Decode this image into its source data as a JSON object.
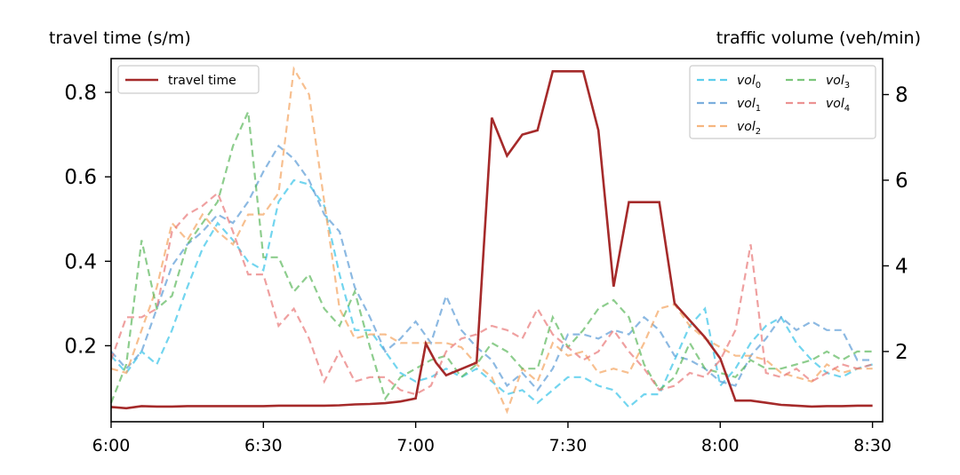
{
  "chart_data": {
    "type": "line",
    "ylabel_left": "travel time (s/m)",
    "ylabel_right": "traffic volume (veh/min)",
    "xlabel": "",
    "xlim": [
      0,
      152
    ],
    "ylim_left": [
      0.02,
      0.88
    ],
    "ylim_right": [
      0.36,
      8.84
    ],
    "xticks": [
      {
        "x": 0,
        "label": "6:00"
      },
      {
        "x": 30,
        "label": "6:30"
      },
      {
        "x": 60,
        "label": "7:00"
      },
      {
        "x": 90,
        "label": "7:30"
      },
      {
        "x": 120,
        "label": "8:00"
      },
      {
        "x": 150,
        "label": "8:30"
      }
    ],
    "yticks_left": [
      {
        "v": 0.2,
        "label": "0.2"
      },
      {
        "v": 0.4,
        "label": "0.4"
      },
      {
        "v": 0.6,
        "label": "0.6"
      },
      {
        "v": 0.8,
        "label": "0.8"
      }
    ],
    "yticks_right": [
      {
        "v": 2,
        "label": "2"
      },
      {
        "v": 4,
        "label": "4"
      },
      {
        "v": 6,
        "label": "6"
      },
      {
        "v": 8,
        "label": "8"
      }
    ],
    "x": [
      0,
      3,
      6,
      9,
      12,
      15,
      18,
      21,
      24,
      27,
      30,
      33,
      36,
      39,
      42,
      45,
      48,
      51,
      54,
      57,
      60,
      63,
      66,
      69,
      72,
      75,
      78,
      81,
      84,
      87,
      90,
      93,
      96,
      99,
      102,
      105,
      108,
      111,
      114,
      117,
      120,
      123,
      126,
      129,
      132,
      135,
      138,
      141,
      144,
      147,
      150
    ],
    "travel_time": {
      "name": "travel time",
      "axis": "left",
      "color": "#a52a2a",
      "x": [
        0,
        3,
        6,
        9,
        12,
        15,
        18,
        21,
        24,
        27,
        30,
        33,
        36,
        39,
        42,
        45,
        48,
        51,
        54,
        57,
        60,
        62,
        64,
        66,
        68,
        72,
        75,
        78,
        81,
        84,
        87,
        90,
        93,
        96,
        99,
        102,
        105,
        108,
        111,
        114,
        117,
        120,
        123,
        126,
        129,
        132,
        135,
        138,
        141,
        144,
        147,
        150
      ],
      "values": [
        0.055,
        0.052,
        0.057,
        0.056,
        0.056,
        0.057,
        0.057,
        0.057,
        0.057,
        0.057,
        0.057,
        0.058,
        0.058,
        0.058,
        0.058,
        0.059,
        0.061,
        0.062,
        0.064,
        0.068,
        0.075,
        0.205,
        0.16,
        0.13,
        0.14,
        0.16,
        0.74,
        0.65,
        0.7,
        0.71,
        0.85,
        0.85,
        0.85,
        0.71,
        0.34,
        0.54,
        0.54,
        0.54,
        0.3,
        0.26,
        0.22,
        0.17,
        0.07,
        0.07,
        0.065,
        0.06,
        0.058,
        0.056,
        0.057,
        0.057,
        0.058,
        0.058
      ]
    },
    "series": [
      {
        "name": "vol",
        "sub": "0",
        "color": "#36c3e8",
        "values": [
          1.9,
          1.5,
          2.0,
          1.7,
          2.5,
          3.5,
          4.4,
          5.0,
          4.6,
          4.1,
          3.9,
          5.5,
          6.0,
          5.9,
          5.4,
          3.8,
          2.5,
          2.5,
          2.0,
          1.5,
          1.3,
          1.4,
          1.6,
          1.4,
          1.6,
          1.3,
          1.0,
          1.1,
          0.8,
          1.1,
          1.4,
          1.4,
          1.2,
          1.1,
          0.7,
          1.0,
          1.0,
          1.8,
          2.6,
          3.0,
          1.2,
          1.6,
          2.2,
          2.6,
          2.8,
          2.2,
          1.8,
          1.5,
          1.4,
          1.6,
          1.7
        ]
      },
      {
        "name": "vol",
        "sub": "1",
        "color": "#5b9bd5",
        "values": [
          2.0,
          1.6,
          2.0,
          3.0,
          4.0,
          4.5,
          4.8,
          5.2,
          5.0,
          5.5,
          6.2,
          6.8,
          6.5,
          6.0,
          5.2,
          4.8,
          3.5,
          2.8,
          2.0,
          2.3,
          2.7,
          2.2,
          3.3,
          2.5,
          2.1,
          1.8,
          1.2,
          1.5,
          1.1,
          1.6,
          2.4,
          2.4,
          2.3,
          2.5,
          2.4,
          2.8,
          2.5,
          1.9,
          1.8,
          1.6,
          1.3,
          1.2,
          1.9,
          2.3,
          2.8,
          2.5,
          2.7,
          2.5,
          2.5,
          1.8,
          1.8
        ]
      },
      {
        "name": "vol",
        "sub": "2",
        "color": "#f4a460",
        "values": [
          1.6,
          1.5,
          2.5,
          3.5,
          5.0,
          4.6,
          5.2,
          4.8,
          4.5,
          5.2,
          5.2,
          5.7,
          8.6,
          8.0,
          5.5,
          3.0,
          2.3,
          2.4,
          2.4,
          2.2,
          2.2,
          2.2,
          2.2,
          2.1,
          1.7,
          1.4,
          0.6,
          1.6,
          1.3,
          2.2,
          1.9,
          2.0,
          1.5,
          1.6,
          1.5,
          2.2,
          3.0,
          3.1,
          2.6,
          2.3,
          2.1,
          1.9,
          1.9,
          1.8,
          1.5,
          1.4,
          1.3,
          1.7,
          1.5,
          1.6,
          1.6
        ]
      },
      {
        "name": "vol",
        "sub": "3",
        "color": "#5cb85c",
        "values": [
          0.8,
          1.7,
          4.6,
          3.0,
          3.3,
          4.5,
          5.0,
          5.5,
          6.8,
          7.6,
          4.2,
          4.2,
          3.4,
          3.8,
          3.0,
          2.6,
          3.4,
          2.1,
          0.9,
          1.4,
          1.6,
          1.8,
          1.9,
          1.4,
          1.7,
          2.2,
          2.0,
          1.6,
          1.6,
          2.8,
          2.1,
          2.5,
          3.0,
          3.2,
          2.8,
          1.7,
          1.1,
          1.4,
          2.2,
          1.6,
          1.5,
          1.4,
          1.8,
          1.6,
          1.6,
          1.7,
          1.8,
          2.0,
          1.8,
          2.0,
          2.0
        ]
      },
      {
        "name": "vol",
        "sub": "4",
        "color": "#e87878",
        "values": [
          1.8,
          2.8,
          2.8,
          3.0,
          4.8,
          5.2,
          5.4,
          5.7,
          4.8,
          3.8,
          3.8,
          2.6,
          3.0,
          2.3,
          1.3,
          2.0,
          1.3,
          1.4,
          1.4,
          1.1,
          1.0,
          1.2,
          2.0,
          2.3,
          2.4,
          2.6,
          2.5,
          2.3,
          3.0,
          2.4,
          2.1,
          1.8,
          2.0,
          2.5,
          2.0,
          1.6,
          1.1,
          1.2,
          1.5,
          1.4,
          1.8,
          2.5,
          4.5,
          1.5,
          1.4,
          1.6,
          1.3,
          1.5,
          1.7,
          1.6,
          1.7
        ]
      }
    ],
    "legend_left": {
      "position": "top-left",
      "label": "travel time"
    },
    "legend_right": {
      "position": "top-right",
      "columns": 2
    },
    "grid": false
  }
}
